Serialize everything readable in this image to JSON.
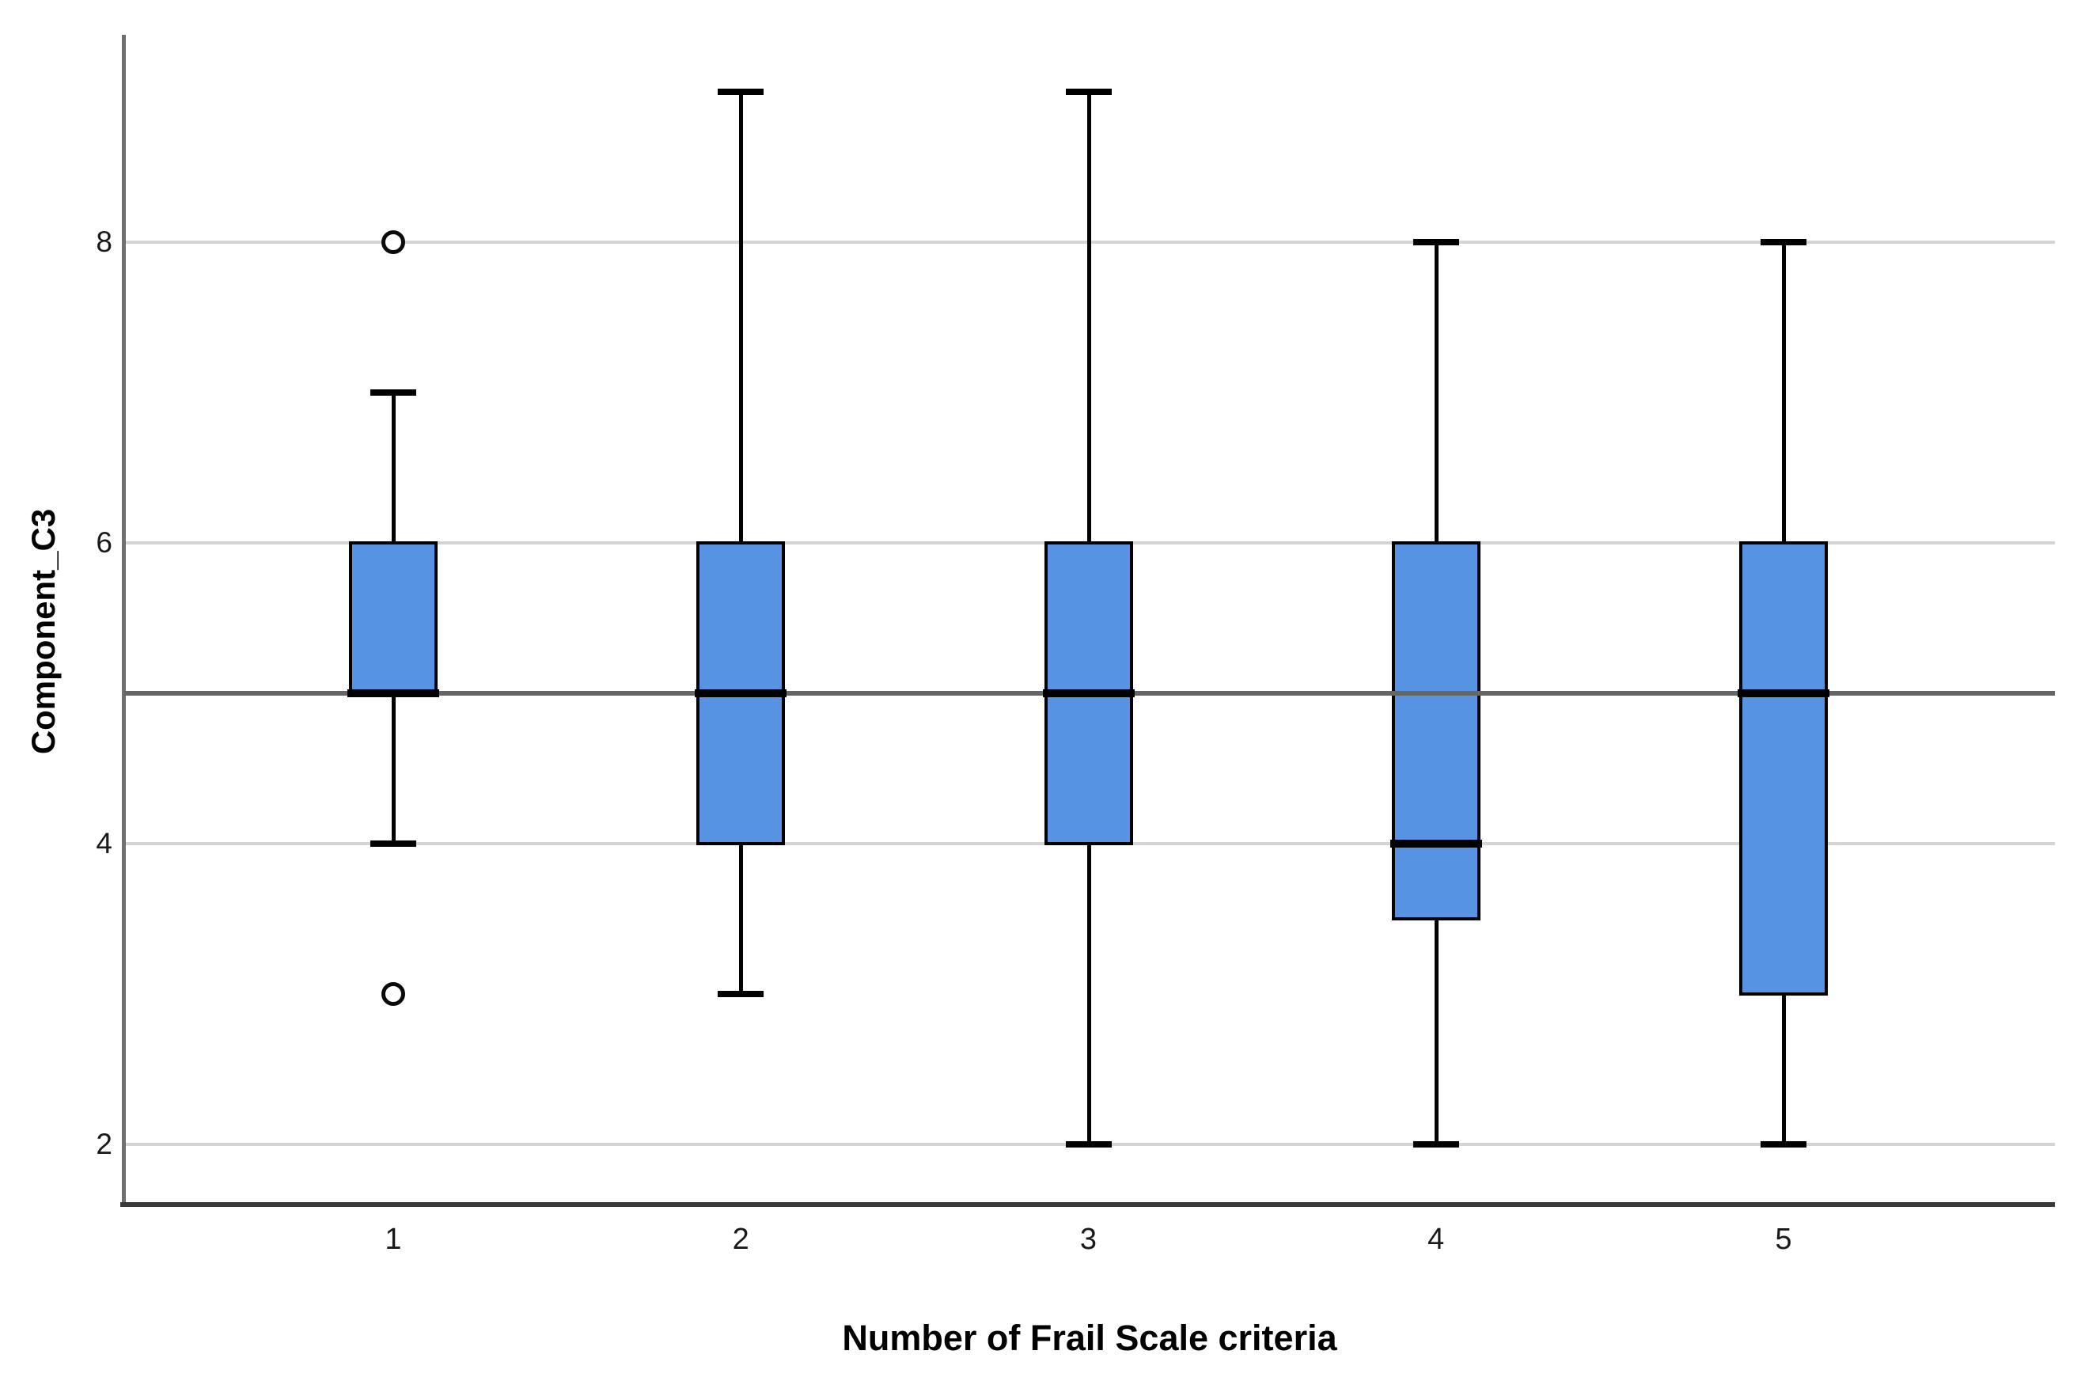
{
  "chart_data": {
    "type": "boxplot",
    "title": "",
    "xlabel": "Number of Frail Scale criteria",
    "ylabel": "Component_C3",
    "categories": [
      "1",
      "2",
      "3",
      "4",
      "5"
    ],
    "y_ticks": [
      2,
      4,
      6,
      8
    ],
    "y_range": [
      1.6,
      9.4
    ],
    "reference_line": 5,
    "grid": "horizontal-only",
    "legend": "none",
    "series": [
      {
        "category": "1",
        "whisker_low": 4,
        "q1": 5,
        "median": 5,
        "q3": 6,
        "whisker_high": 7,
        "outliers": [
          8,
          3
        ]
      },
      {
        "category": "2",
        "whisker_low": 3,
        "q1": 4,
        "median": 5,
        "q3": 6,
        "whisker_high": 9,
        "outliers": []
      },
      {
        "category": "3",
        "whisker_low": 2,
        "q1": 4,
        "median": 5,
        "q3": 6,
        "whisker_high": 9,
        "outliers": []
      },
      {
        "category": "4",
        "whisker_low": 2,
        "q1": 3.5,
        "median": 4,
        "q3": 6,
        "whisker_high": 8,
        "outliers": []
      },
      {
        "category": "5",
        "whisker_low": 2,
        "q1": 3,
        "median": 5,
        "q3": 6,
        "whisker_high": 8,
        "outliers": []
      }
    ],
    "colors": {
      "box_fill": "#5793E3",
      "box_border": "#000000",
      "median_line": "#000000",
      "whisker": "#000000",
      "outlier_stroke": "#0a0a0a",
      "gridline": "#d5d5d5",
      "reference_line": "#666666",
      "axis_left": "#6f6f6f",
      "axis_bottom": "#3a3a3a",
      "background": "#ffffff",
      "text": "#000000"
    }
  }
}
